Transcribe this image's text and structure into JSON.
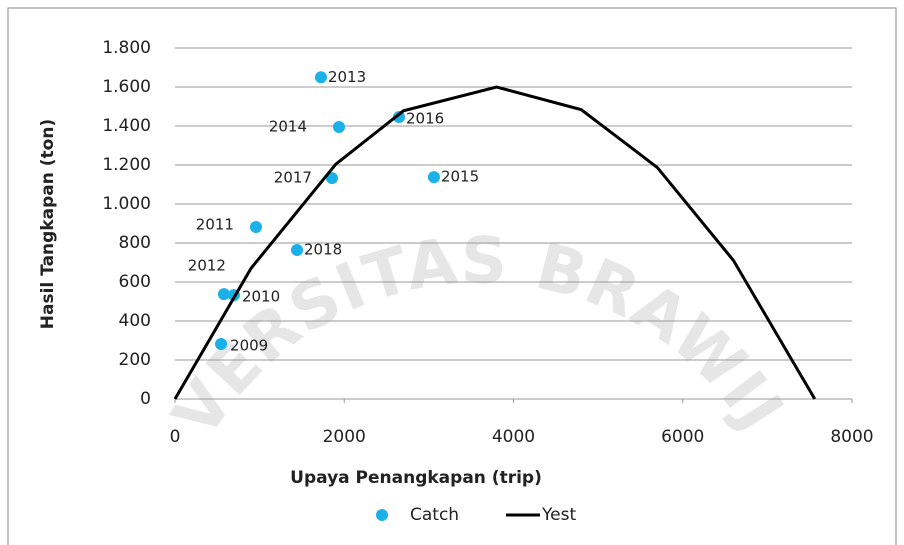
{
  "watermark": "UNIVERSITAS BRAWIJAYA",
  "chart_data": {
    "type": "scatter",
    "xlabel": "Upaya Penangkapan (trip)",
    "ylabel": "Hasil Tangkapan (ton)",
    "xlim": [
      0,
      8000
    ],
    "xticks": [
      0,
      2000,
      4000,
      6000,
      8000
    ],
    "ylim": [
      0,
      1800
    ],
    "yticks": [
      0,
      200,
      400,
      600,
      800,
      {
        "value": 1000,
        "label": "1.000"
      },
      {
        "value": 1200,
        "label": "1.200"
      },
      {
        "value": 1400,
        "label": "1.400"
      },
      {
        "value": 1600,
        "label": "1.600"
      },
      {
        "value": 1800,
        "label": "1.800"
      }
    ],
    "grid": true,
    "legend": "bottom",
    "series": [
      {
        "name": "Catch",
        "color": "#1ab0e8",
        "mode": "markers",
        "labels": [
          "2013",
          "2014",
          "2016",
          "2015",
          "2017",
          "2011",
          "2018",
          "2012",
          "2010",
          "2009"
        ],
        "x": [
          1725,
          1938,
          2647,
          3060,
          1855,
          957,
          1442,
          579,
          697,
          544
        ],
        "values": [
          1650,
          1395,
          1446,
          1138,
          1133,
          882,
          764,
          538,
          533,
          282
        ]
      },
      {
        "name": "Yest",
        "color": "#000000",
        "mode": "line",
        "x": [
          0,
          900,
          1900,
          2700,
          3800,
          4800,
          5700,
          6600,
          7560
        ],
        "values": [
          0,
          671,
          1204,
          1478,
          1600,
          1484,
          1187,
          710,
          0
        ]
      }
    ]
  }
}
